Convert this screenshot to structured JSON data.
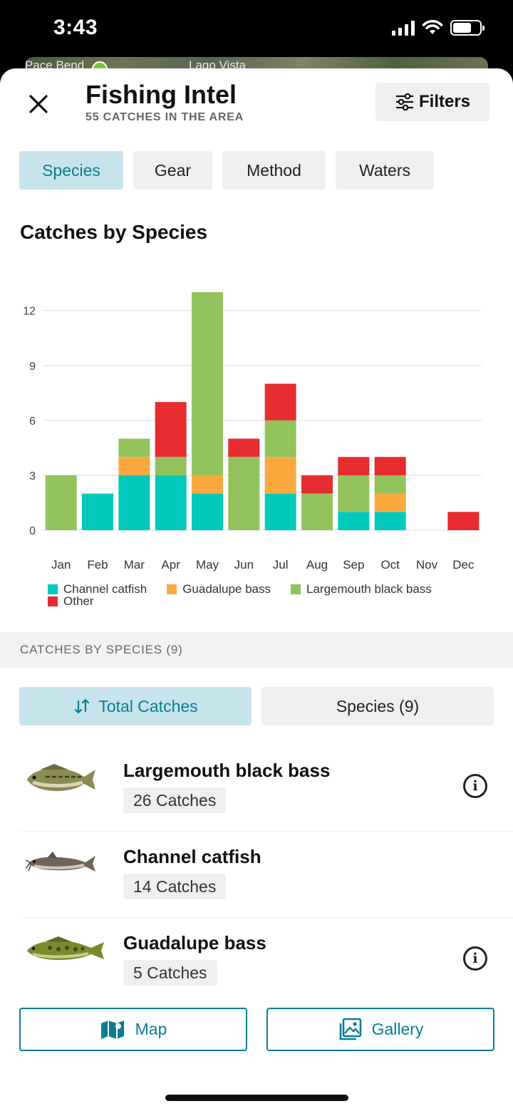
{
  "status_bar": {
    "time": "3:43"
  },
  "map": {
    "labels": [
      "Pace Bend",
      "Lago Vista"
    ]
  },
  "header": {
    "title": "Fishing Intel",
    "subtitle": "55 CATCHES IN THE AREA",
    "filters_label": "Filters"
  },
  "tabs": [
    {
      "label": "Species",
      "active": true
    },
    {
      "label": "Gear",
      "active": false
    },
    {
      "label": "Method",
      "active": false
    },
    {
      "label": "Waters",
      "active": false
    }
  ],
  "chart_title": "Catches by Species",
  "chart_data": {
    "type": "bar",
    "stacked": true,
    "categories": [
      "Jan",
      "Feb",
      "Mar",
      "Apr",
      "May",
      "Jun",
      "Jul",
      "Aug",
      "Sep",
      "Oct",
      "Nov",
      "Dec"
    ],
    "series": [
      {
        "name": "Channel catfish",
        "color": "#00c9bc",
        "values": [
          0,
          2,
          3,
          3,
          2,
          0,
          2,
          0,
          1,
          1,
          0,
          0
        ]
      },
      {
        "name": "Guadalupe bass",
        "color": "#fba93f",
        "values": [
          0,
          0,
          1,
          0,
          1,
          0,
          2,
          0,
          0,
          1,
          0,
          0
        ]
      },
      {
        "name": "Largemouth black bass",
        "color": "#92c35d",
        "values": [
          3,
          0,
          1,
          1,
          10,
          4,
          2,
          2,
          2,
          1,
          0,
          0
        ]
      },
      {
        "name": "Other",
        "color": "#e62c2f",
        "values": [
          0,
          0,
          0,
          3,
          0,
          1,
          2,
          1,
          1,
          1,
          0,
          1
        ]
      }
    ],
    "yticks": [
      0,
      3,
      6,
      9,
      12
    ],
    "ylim": [
      0,
      13
    ],
    "grid": true,
    "legend": "bottom"
  },
  "section": {
    "label": "CATCHES BY SPECIES (9)"
  },
  "sort": {
    "total_label": "Total Catches",
    "species_label": "Species (9)"
  },
  "species": [
    {
      "name": "Largemouth black bass",
      "catches": "26 Catches",
      "fish_icon": "largemouth-bass",
      "info": true
    },
    {
      "name": "Channel catfish",
      "catches": "14 Catches",
      "fish_icon": "channel-catfish",
      "info": false
    },
    {
      "name": "Guadalupe bass",
      "catches": "5 Catches",
      "fish_icon": "guadalupe-bass",
      "info": true
    }
  ],
  "bottom": {
    "map_label": "Map",
    "gallery_label": "Gallery"
  },
  "colors": {
    "accent": "#0a7c95",
    "accent_bg": "#c7e4ec"
  }
}
